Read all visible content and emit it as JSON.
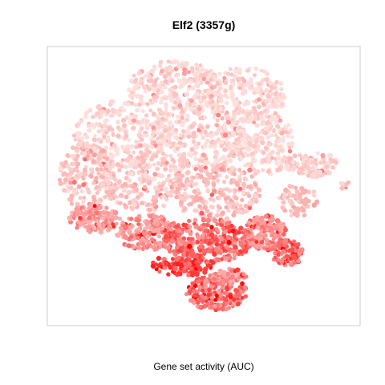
{
  "chart_data": {
    "type": "scatter",
    "title": "Elf2 (3357g)",
    "xlabel": "Gene set activity (AUC)",
    "ylabel": "",
    "axes_visible": false,
    "grid": false,
    "legend": "none",
    "color_scale": {
      "low": "#fde0dd",
      "mid": "#fb9a99",
      "high": "#ff0000"
    }
  }
}
